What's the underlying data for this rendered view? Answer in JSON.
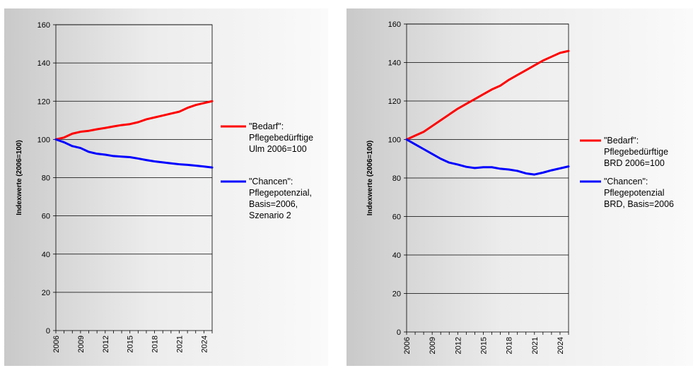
{
  "chart_data": [
    {
      "type": "line",
      "ylabel": "Indexwerte (2006=100)",
      "xlabel": "",
      "ylim": [
        0,
        160
      ],
      "yticks": [
        0,
        20,
        40,
        60,
        80,
        100,
        120,
        140,
        160
      ],
      "x": [
        2006,
        2007,
        2008,
        2009,
        2010,
        2011,
        2012,
        2013,
        2014,
        2015,
        2016,
        2017,
        2018,
        2019,
        2020,
        2021,
        2022,
        2023,
        2024,
        2025
      ],
      "xtick_labels": [
        "2006",
        "2009",
        "2012",
        "2015",
        "2018",
        "2021",
        "2024"
      ],
      "grid": "horizontal",
      "legend_position": "right",
      "series": [
        {
          "name": "\"Bedarf\": Pflegebedürftige Ulm 2006=100",
          "legend_lines": [
            "\"Bedarf\":",
            "Pflegebedürftige",
            "Ulm 2006=100"
          ],
          "color": "#ff0000",
          "values": [
            100,
            101,
            103,
            104,
            104.5,
            105.3,
            106,
            106.8,
            107.5,
            108,
            109,
            110.5,
            111.5,
            112.5,
            113.5,
            114.5,
            116.5,
            118,
            119,
            120
          ]
        },
        {
          "name": "\"Chancen\": Pflegepotenzial, Basis=2006, Szenario 2",
          "legend_lines": [
            "\"Chancen\":",
            "Pflegepotenzial,",
            "Basis=2006,",
            "Szenario 2"
          ],
          "color": "#0000ff",
          "values": [
            100,
            98.5,
            96.5,
            95.5,
            93.5,
            92.5,
            92,
            91.3,
            91,
            90.7,
            90,
            89.2,
            88.5,
            88,
            87.5,
            87,
            86.7,
            86.3,
            85.8,
            85.3
          ]
        }
      ]
    },
    {
      "type": "line",
      "ylabel": "Indexwerte (2006=100)",
      "xlabel": "",
      "ylim": [
        0,
        160
      ],
      "yticks": [
        0,
        20,
        40,
        60,
        80,
        100,
        120,
        140,
        160
      ],
      "x": [
        2006,
        2007,
        2008,
        2009,
        2010,
        2011,
        2012,
        2013,
        2014,
        2015,
        2016,
        2017,
        2018,
        2019,
        2020,
        2021,
        2022,
        2023,
        2024,
        2025
      ],
      "xtick_labels": [
        "2006",
        "2009",
        "2012",
        "2015",
        "2018",
        "2021",
        "2024"
      ],
      "grid": "horizontal",
      "legend_position": "right",
      "series": [
        {
          "name": "\"Bedarf\": Pflegebedürftige BRD 2006=100",
          "legend_lines": [
            "\"Bedarf\":",
            "Pflegebedürftige",
            "BRD 2006=100"
          ],
          "color": "#ff0000",
          "values": [
            100,
            102,
            104,
            107,
            110,
            113,
            116,
            118.5,
            121,
            123.5,
            126,
            128,
            131,
            133.5,
            136,
            138.5,
            141,
            143,
            145,
            146
          ]
        },
        {
          "name": "\"Chancen\": Pflegepotenzial BRD, Basis=2006",
          "legend_lines": [
            "\"Chancen\":",
            "Pflegepotenzial",
            "BRD, Basis=2006"
          ],
          "color": "#0000ff",
          "values": [
            100,
            97.5,
            95,
            92.5,
            90,
            88,
            87,
            85.8,
            85.2,
            85.6,
            85.6,
            84.8,
            84.4,
            83.7,
            82.4,
            81.8,
            82.8,
            84,
            85,
            86
          ]
        }
      ]
    }
  ]
}
